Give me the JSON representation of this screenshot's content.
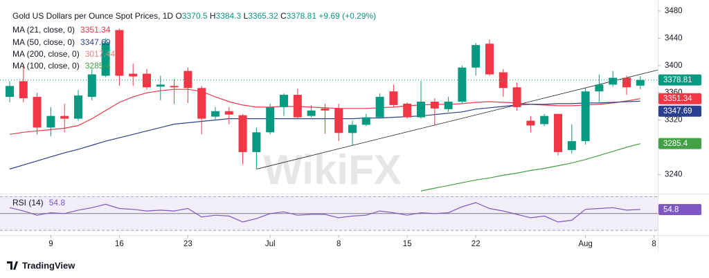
{
  "chart_data": {
    "type": "candlestick",
    "title": "Gold US Dollars per Ounce Spot Prices, 1D",
    "ohlc_labels": [
      "O",
      "H",
      "L",
      "C"
    ],
    "change": "+9.69 (+0.29%)",
    "up_color": "#089981",
    "down_color": "#f23645",
    "open": [
      3354,
      3377,
      3354,
      3309,
      3326,
      3322,
      3354,
      3385,
      3452,
      3388,
      3388,
      3369,
      3370,
      3392,
      3367,
      3325,
      3333,
      3327,
      3273,
      3302,
      3339,
      3357,
      3326,
      3337,
      3337,
      3301,
      3313,
      3324,
      3362,
      3344,
      3324,
      3347,
      3336,
      3347,
      3397,
      3432,
      3390,
      3368,
      3319,
      3314,
      3329,
      3276,
      3289,
      3362,
      3372,
      3382,
      3370.5
    ],
    "high": [
      3377,
      3402,
      3360,
      3339,
      3344,
      3364,
      3395,
      3440,
      3454,
      3403,
      3395,
      3385,
      3380,
      3397,
      3370,
      3339,
      3339,
      3329,
      3309,
      3344,
      3359,
      3366,
      3342,
      3344,
      3344,
      3319,
      3329,
      3359,
      3372,
      3346,
      3377,
      3352,
      3354,
      3400,
      3433,
      3438,
      3395,
      3375,
      3326,
      3329,
      3329,
      3314,
      3367,
      3387,
      3392,
      3385,
      3384.3
    ],
    "low": [
      3346,
      3346,
      3299,
      3296,
      3302,
      3319,
      3349,
      3383,
      3370,
      3370,
      3365,
      3349,
      3344,
      3345,
      3299,
      3319,
      3314,
      3255,
      3248,
      3299,
      3326,
      3322,
      3324,
      3300,
      3289,
      3283,
      3311,
      3322,
      3339,
      3322,
      3322,
      3312,
      3332,
      3344,
      3385,
      3385,
      3354,
      3334,
      3302,
      3311,
      3268,
      3271,
      3284,
      3347,
      3369,
      3357,
      3365.32
    ],
    "close": [
      3370,
      3352,
      3309,
      3326,
      3322,
      3356,
      3387,
      3433,
      3385,
      3384,
      3368,
      3372,
      3368,
      3367,
      3322,
      3333,
      3328,
      3273,
      3302,
      3339,
      3357,
      3324,
      3334,
      3334,
      3301,
      3313,
      3324,
      3354,
      3342,
      3324,
      3347,
      3337,
      3347,
      3397,
      3430,
      3387,
      3367,
      3339,
      3312,
      3326,
      3273,
      3289,
      3362,
      3372,
      3382,
      3368,
      3378.81
    ],
    "series": [
      {
        "name": "MA (21, close, 0)",
        "color": "#f23645",
        "legend_value": 3351.34,
        "values": [
          3299,
          3302,
          3304,
          3306,
          3308,
          3312,
          3322,
          3334,
          3346,
          3354,
          3360,
          3363,
          3365,
          3365,
          3362,
          3354,
          3347,
          3342,
          3339,
          3339,
          3340,
          3340,
          3339,
          3338,
          3337,
          3337,
          3337,
          3338,
          3339,
          3341,
          3342,
          3343,
          3343,
          3344,
          3346,
          3347,
          3346,
          3345,
          3343,
          3342,
          3341,
          3341,
          3342,
          3343,
          3345,
          3348,
          3351.34
        ]
      },
      {
        "name": "MA (50, close, 0)",
        "color": "#2a3f8f",
        "legend_value": 3347.69,
        "values": [
          3248,
          3254,
          3260,
          3266,
          3272,
          3277,
          3283,
          3289,
          3294,
          3299,
          3304,
          3309,
          3314,
          3316,
          3318,
          3320,
          3322,
          3322,
          3322,
          3322,
          3322,
          3322,
          3322,
          3322,
          3322,
          3322,
          3323,
          3323,
          3324,
          3325,
          3326,
          3328,
          3330,
          3332,
          3336,
          3338,
          3340,
          3342,
          3343,
          3343,
          3344,
          3344,
          3345,
          3345,
          3346,
          3347,
          3347.69
        ]
      },
      {
        "name": "MA (200, close, 0)",
        "color": "#f08080",
        "legend_value": 3017.44
      },
      {
        "name": "MA (100, close, 0)",
        "color": "#43a047",
        "legend_value": 3285.4,
        "values": [
          null,
          null,
          null,
          null,
          null,
          null,
          null,
          null,
          null,
          null,
          null,
          null,
          null,
          null,
          null,
          null,
          null,
          null,
          null,
          null,
          null,
          null,
          null,
          null,
          null,
          null,
          null,
          null,
          null,
          null,
          3216,
          3220,
          3224,
          3228,
          3232,
          3235,
          3239,
          3242,
          3246,
          3249,
          3253,
          3257,
          3262,
          3268,
          3274,
          3280,
          3285.4
        ]
      }
    ],
    "trendline": {
      "color": "#131722",
      "from": [
        18,
        3248
      ],
      "to": [
        48,
        3397
      ]
    },
    "ylim": [
      3212,
      3486
    ],
    "yticks": [
      3240,
      3320,
      3360,
      3400,
      3440,
      3480
    ],
    "xticks": [
      {
        "value": 3,
        "label": "9"
      },
      {
        "value": 8,
        "label": "16"
      },
      {
        "value": 13,
        "label": "23"
      },
      {
        "value": 19,
        "label": "Jul"
      },
      {
        "value": 24,
        "label": "8"
      },
      {
        "value": 29,
        "label": "15"
      },
      {
        "value": 34,
        "label": "22"
      },
      {
        "value": 42,
        "label": "Aug"
      },
      {
        "value": 47,
        "label": "8"
      }
    ],
    "rsi": {
      "name": "RSI (14)",
      "color": "#7e57c2",
      "legend_value": 54.8,
      "ylim": [
        26,
        72
      ],
      "band": [
        30,
        70
      ],
      "midline": 50,
      "values": [
        57,
        53,
        48,
        51,
        50,
        54,
        57,
        61,
        56,
        55,
        53,
        54,
        53,
        56,
        46,
        48,
        47,
        40,
        44,
        50,
        52,
        48,
        49,
        49,
        45,
        47,
        48,
        53,
        51,
        48,
        51,
        50,
        51,
        58,
        63,
        56,
        53,
        49,
        45,
        47,
        40,
        42,
        55,
        56,
        57,
        54,
        54.8
      ]
    },
    "watermark": "WikiFX",
    "brand": "TradingView"
  }
}
